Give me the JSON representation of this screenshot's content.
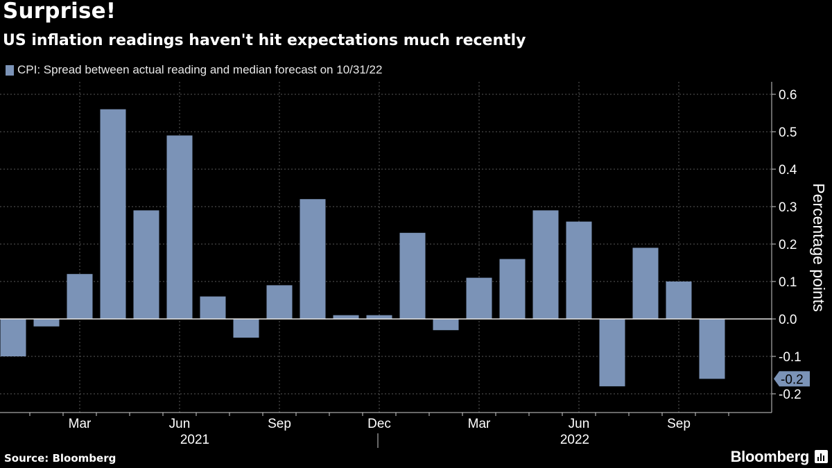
{
  "header": {
    "title": "Surprise!",
    "subtitle": "US inflation readings haven't hit expectations much recently"
  },
  "legend": {
    "label": "CPI: Spread between actual reading and median forecast on 10/31/22",
    "color": "#7b93b7"
  },
  "footer": {
    "source": "Source: Bloomberg",
    "brand": "Bloomberg"
  },
  "colors": {
    "background": "#000000",
    "bar": "#7b93b7",
    "grid": "#5a5a5a",
    "text": "#ffffff"
  },
  "chart_data": {
    "type": "bar",
    "categories": [
      "Jan 2021",
      "Feb 2021",
      "Mar 2021",
      "Apr 2021",
      "May 2021",
      "Jun 2021",
      "Jul 2021",
      "Aug 2021",
      "Sep 2021",
      "Oct 2021",
      "Nov 2021",
      "Dec 2021",
      "Jan 2022",
      "Feb 2022",
      "Mar 2022",
      "Apr 2022",
      "May 2022",
      "Jun 2022",
      "Jul 2022",
      "Aug 2022",
      "Sep 2022",
      "Oct 2022"
    ],
    "values": [
      -0.1,
      -0.02,
      0.12,
      0.56,
      0.29,
      0.49,
      0.06,
      -0.05,
      0.09,
      0.32,
      0.01,
      0.01,
      0.23,
      -0.03,
      0.11,
      0.16,
      0.29,
      0.26,
      -0.18,
      0.19,
      0.1,
      -0.16
    ],
    "ylim": [
      -0.25,
      0.62
    ],
    "yticks": [
      "0.6",
      "0.5",
      "0.4",
      "0.3",
      "0.2",
      "0.1",
      "0.0",
      "-0.1",
      "-0.2"
    ],
    "ylabel": "Percentage points",
    "month_ticks": [
      "Mar",
      "Jun",
      "Sep",
      "Dec",
      "Mar",
      "Jun",
      "Sep"
    ],
    "years": [
      "2021",
      "2022"
    ],
    "last_value_label": "-0.2",
    "grid": true
  }
}
